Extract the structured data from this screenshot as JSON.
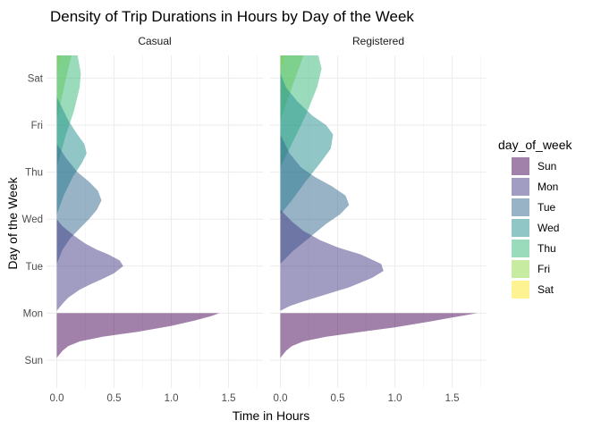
{
  "chart_data": {
    "type": "area",
    "title": "Density of Trip Durations in Hours by Day of the Week",
    "xlabel": "Time in Hours",
    "ylabel": "Day of the Week",
    "xlim": [
      -0.09,
      1.8
    ],
    "x_ticks": [
      "0.0",
      "0.5",
      "1.0",
      "1.5"
    ],
    "x_tick_values": [
      0,
      0.5,
      1.0,
      1.5
    ],
    "categories": [
      "Sun",
      "Mon",
      "Tue",
      "Wed",
      "Thu",
      "Fri",
      "Sat"
    ],
    "grid": true,
    "legend": {
      "title": "day_of_week",
      "position": "right",
      "entries": [
        "Sun",
        "Mon",
        "Tue",
        "Wed",
        "Thu",
        "Fri",
        "Sat"
      ]
    },
    "colors": {
      "Sun": "#440154",
      "Mon": "#443a83",
      "Tue": "#31688e",
      "Wed": "#21908d",
      "Thu": "#35b779",
      "Fri": "#8fd744",
      "Sat": "#fde725"
    },
    "facets": [
      {
        "label": "Casual",
        "series": [
          {
            "day": "Sun",
            "x": [
              0.0,
              0.05,
              0.1,
              0.2,
              0.4,
              0.7,
              1.0,
              1.2,
              1.35,
              1.42
            ],
            "y": [
              0.05,
              0.2,
              0.3,
              0.4,
              0.5,
              0.6,
              0.73,
              0.84,
              0.94,
              1.0
            ]
          },
          {
            "day": "Mon",
            "x": [
              0.0,
              0.05,
              0.1,
              0.2,
              0.3,
              0.4,
              0.5,
              0.58,
              0.55,
              0.45,
              0.35,
              0.25,
              0.15,
              0.05,
              0.0
            ],
            "y": [
              0.05,
              0.2,
              0.33,
              0.5,
              0.62,
              0.73,
              0.85,
              1.0,
              1.12,
              1.25,
              1.35,
              1.48,
              1.65,
              1.85,
              2.0
            ]
          },
          {
            "day": "Tue",
            "x": [
              0.0,
              0.05,
              0.12,
              0.2,
              0.28,
              0.35,
              0.39,
              0.36,
              0.28,
              0.18,
              0.08,
              0.0
            ],
            "y": [
              0.05,
              0.35,
              0.6,
              0.8,
              1.0,
              1.2,
              1.4,
              1.6,
              1.8,
              2.0,
              2.3,
              2.6
            ]
          },
          {
            "day": "Wed",
            "x": [
              0.0,
              0.06,
              0.14,
              0.22,
              0.26,
              0.24,
              0.18,
              0.1,
              0.0
            ],
            "y": [
              0.1,
              0.5,
              0.9,
              1.2,
              1.4,
              1.6,
              1.8,
              2.1,
              2.6
            ]
          },
          {
            "day": "Thu",
            "x": [
              0.0,
              0.08,
              0.15,
              0.2,
              0.21,
              0.18,
              0.1,
              0.0
            ],
            "y": [
              0.1,
              0.8,
              1.3,
              1.8,
              2.1,
              2.5,
              2.9,
              3.2
            ]
          },
          {
            "day": "Fri",
            "x": [
              0.0,
              0.08,
              0.15,
              0.2,
              0.22,
              0.2,
              0.12,
              0.0
            ],
            "y": [
              0.1,
              1.0,
              1.7,
              2.4,
              2.9,
              3.2,
              3.6,
              4.0
            ]
          },
          {
            "day": "Sat",
            "x": [
              0.0,
              0.1,
              0.18,
              0.21,
              0.21,
              0.2
            ],
            "y": [
              0.1,
              1.2,
              2.5,
              3.5,
              4.5,
              6.0
            ]
          }
        ]
      },
      {
        "label": "Registered",
        "series": [
          {
            "day": "Sun",
            "x": [
              0.0,
              0.05,
              0.1,
              0.2,
              0.4,
              0.7,
              1.0,
              1.3,
              1.55,
              1.72
            ],
            "y": [
              0.05,
              0.2,
              0.3,
              0.4,
              0.5,
              0.6,
              0.7,
              0.82,
              0.93,
              1.0
            ]
          },
          {
            "day": "Mon",
            "x": [
              0.0,
              0.08,
              0.2,
              0.4,
              0.6,
              0.8,
              0.9,
              0.88,
              0.7,
              0.5,
              0.35,
              0.2,
              0.1,
              0.0
            ],
            "y": [
              0.05,
              0.15,
              0.25,
              0.4,
              0.55,
              0.75,
              0.9,
              1.05,
              1.25,
              1.4,
              1.55,
              1.75,
              1.95,
              2.2
            ]
          },
          {
            "day": "Tue",
            "x": [
              0.0,
              0.1,
              0.25,
              0.4,
              0.52,
              0.6,
              0.57,
              0.45,
              0.3,
              0.18,
              0.08,
              0.0
            ],
            "y": [
              0.05,
              0.3,
              0.6,
              0.9,
              1.1,
              1.3,
              1.5,
              1.7,
              1.9,
              2.1,
              2.4,
              2.8
            ]
          },
          {
            "day": "Wed",
            "x": [
              0.0,
              0.1,
              0.22,
              0.35,
              0.44,
              0.46,
              0.4,
              0.28,
              0.15,
              0.05,
              0.0
            ],
            "y": [
              0.1,
              0.4,
              0.8,
              1.2,
              1.5,
              1.8,
              2.0,
              2.2,
              2.5,
              2.8,
              3.1
            ]
          },
          {
            "day": "Thu",
            "x": [
              0.0,
              0.1,
              0.22,
              0.32,
              0.36,
              0.32,
              0.2,
              0.08,
              0.0
            ],
            "y": [
              0.1,
              0.6,
              1.2,
              1.8,
              2.2,
              2.6,
              3.0,
              3.5,
              3.9
            ]
          },
          {
            "day": "Fri",
            "x": [
              0.0,
              0.1,
              0.22,
              0.29,
              0.3,
              0.25,
              0.15,
              0.05,
              0.0
            ],
            "y": [
              0.1,
              0.8,
              1.6,
              2.4,
              3.0,
              3.5,
              4.0,
              4.5,
              4.8
            ]
          },
          {
            "day": "Sat",
            "x": [
              0.0,
              0.1,
              0.18,
              0.24,
              0.26,
              0.25,
              0.22
            ],
            "y": [
              0.1,
              1.0,
              2.0,
              3.0,
              4.0,
              5.0,
              6.0
            ]
          }
        ]
      }
    ]
  }
}
